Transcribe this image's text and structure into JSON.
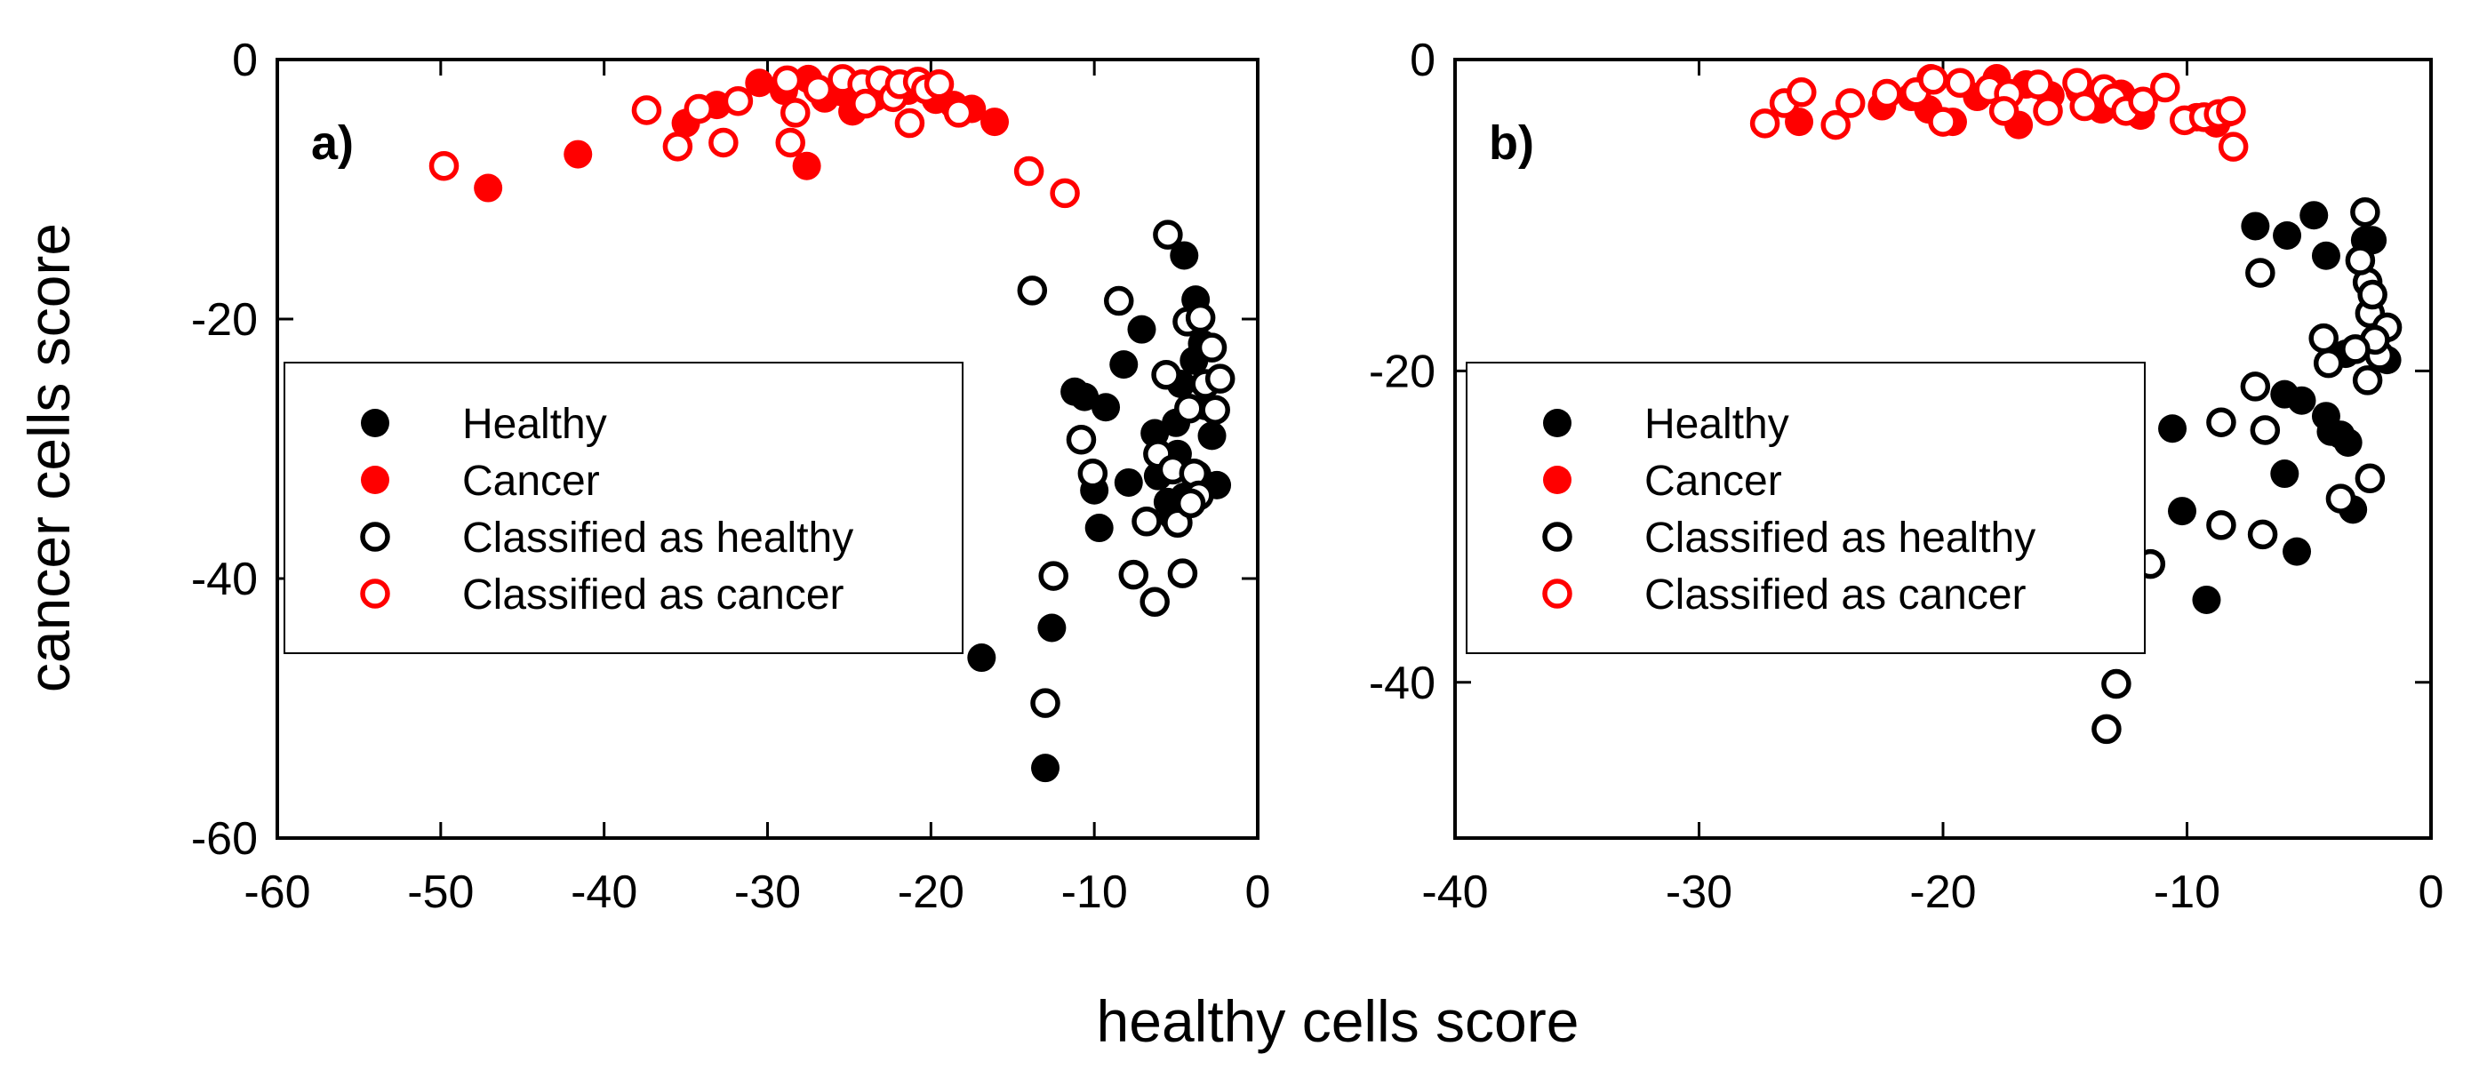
{
  "figure": {
    "xlabel": "healthy cells score",
    "ylabel": "cancer cells score"
  },
  "colors": {
    "healthy": "#000000",
    "cancer": "#ff0000"
  },
  "legend": [
    {
      "label": "Healthy",
      "marker": "filled",
      "color": "#000000"
    },
    {
      "label": "Cancer",
      "marker": "filled",
      "color": "#ff0000"
    },
    {
      "label": "Classified as healthy",
      "marker": "open",
      "color": "#000000"
    },
    {
      "label": "Classified as cancer",
      "marker": "open",
      "color": "#ff0000"
    }
  ],
  "chart_data": [
    {
      "type": "scatter",
      "panel_label": "a)",
      "xlim": [
        -60,
        0
      ],
      "ylim": [
        -60,
        0
      ],
      "xticks": [
        -60,
        -50,
        -40,
        -30,
        -20,
        -10,
        0
      ],
      "yticks": [
        -60,
        -40,
        -20,
        0
      ],
      "legend_position": "center-left",
      "series": [
        {
          "name": "Healthy",
          "marker": "filled",
          "color": "#000000",
          "points": [
            [
              -13,
              -54.6
            ],
            [
              -12.6,
              -43.8
            ],
            [
              -16.9,
              -46.1
            ],
            [
              -9.7,
              -36.1
            ],
            [
              -10,
              -33.2
            ],
            [
              -11.2,
              -25.6
            ],
            [
              -10.6,
              -26
            ],
            [
              -9.3,
              -26.8
            ],
            [
              -8.2,
              -23.5
            ],
            [
              -7.1,
              -20.8
            ],
            [
              -6.3,
              -28.8
            ],
            [
              -6.1,
              -32.1
            ],
            [
              -5.5,
              -34.1
            ],
            [
              -5.2,
              -35.2
            ],
            [
              -7.9,
              -32.6
            ],
            [
              -4.9,
              -30.4
            ],
            [
              -4.5,
              -15.1
            ],
            [
              -3.8,
              -18.5
            ],
            [
              -3.9,
              -23.2
            ],
            [
              -4.7,
              -25
            ],
            [
              -3.2,
              -26.7
            ],
            [
              -2.8,
              -29
            ],
            [
              -3.7,
              -32
            ],
            [
              -2.5,
              -32.8
            ],
            [
              -4.5,
              -33.7
            ],
            [
              -3.4,
              -21.9
            ],
            [
              -5,
              -28
            ]
          ]
        },
        {
          "name": "Cancer",
          "marker": "filled",
          "color": "#ff0000",
          "points": [
            [
              -47.1,
              -9.9
            ],
            [
              -41.6,
              -7.3
            ],
            [
              -35,
              -4.9
            ],
            [
              -33.1,
              -3.5
            ],
            [
              -30.5,
              -1.8
            ],
            [
              -29,
              -2.4
            ],
            [
              -27.5,
              -1.5
            ],
            [
              -27.6,
              -8.2
            ],
            [
              -26.5,
              -3
            ],
            [
              -24.8,
              -4
            ],
            [
              -23.4,
              -2.9
            ],
            [
              -22.2,
              -2.2
            ],
            [
              -21.4,
              -2.4
            ],
            [
              -19.7,
              -3.1
            ],
            [
              -18.6,
              -3.5
            ],
            [
              -17.5,
              -3.8
            ],
            [
              -16.1,
              -4.8
            ],
            [
              -25.5,
              -2.5
            ]
          ]
        },
        {
          "name": "Classified as healthy",
          "marker": "open",
          "color": "#000000",
          "points": [
            [
              -13.8,
              -17.8
            ],
            [
              -13,
              -49.6
            ],
            [
              -12.5,
              -39.8
            ],
            [
              -10.8,
              -29.3
            ],
            [
              -10.1,
              -31.9
            ],
            [
              -8.5,
              -18.6
            ],
            [
              -7.6,
              -39.7
            ],
            [
              -6.8,
              -35.6
            ],
            [
              -6.3,
              -41.8
            ],
            [
              -6.1,
              -30.4
            ],
            [
              -5.6,
              -24.3
            ],
            [
              -5.5,
              -13.5
            ],
            [
              -5.2,
              -31.6
            ],
            [
              -4.9,
              -35.7
            ],
            [
              -4.6,
              -39.6
            ],
            [
              -4.3,
              -20.2
            ],
            [
              -4.2,
              -26.9
            ],
            [
              -3.9,
              -31.9
            ],
            [
              -3.6,
              -33.6
            ],
            [
              -3.2,
              -25
            ],
            [
              -2.8,
              -22.2
            ],
            [
              -2.6,
              -27
            ],
            [
              -2.3,
              -24.6
            ],
            [
              -4.1,
              -34.2
            ],
            [
              -3.5,
              -19.9
            ]
          ]
        },
        {
          "name": "Classified as cancer",
          "marker": "open",
          "color": "#ff0000",
          "points": [
            [
              -49.8,
              -8.2
            ],
            [
              -37.4,
              -3.9
            ],
            [
              -35.5,
              -6.7
            ],
            [
              -34.2,
              -3.8
            ],
            [
              -32.7,
              -6.4
            ],
            [
              -31.8,
              -3.2
            ],
            [
              -28.8,
              -1.6
            ],
            [
              -28.6,
              -6.4
            ],
            [
              -28.3,
              -4.1
            ],
            [
              -26.9,
              -2.3
            ],
            [
              -25.4,
              -1.5
            ],
            [
              -24.2,
              -1.9
            ],
            [
              -23.1,
              -1.6
            ],
            [
              -22.3,
              -2.9
            ],
            [
              -21.9,
              -1.9
            ],
            [
              -21.3,
              -4.9
            ],
            [
              -20.8,
              -1.7
            ],
            [
              -20.3,
              -2.3
            ],
            [
              -19.5,
              -1.9
            ],
            [
              -18.3,
              -4.1
            ],
            [
              -14,
              -8.6
            ],
            [
              -11.8,
              -10.3
            ],
            [
              -24,
              -3.4
            ]
          ]
        }
      ]
    },
    {
      "type": "scatter",
      "panel_label": "b)",
      "xlim": [
        -40,
        0
      ],
      "ylim": [
        -50,
        0
      ],
      "xticks": [
        -40,
        -30,
        -20,
        -10,
        0
      ],
      "yticks": [
        -40,
        -20,
        0
      ],
      "legend_position": "center-left",
      "series": [
        {
          "name": "Healthy",
          "marker": "filled",
          "color": "#000000",
          "points": [
            [
              -9.2,
              -34.7
            ],
            [
              -10.6,
              -23.7
            ],
            [
              -10.2,
              -29
            ],
            [
              -5.5,
              -31.6
            ],
            [
              -6,
              -26.6
            ],
            [
              -6,
              -21.5
            ],
            [
              -5.3,
              -21.9
            ],
            [
              -4.3,
              -22.9
            ],
            [
              -4.1,
              -23.9
            ],
            [
              -3.4,
              -24.6
            ],
            [
              -3.2,
              -28.9
            ],
            [
              -3.5,
              -18.9
            ],
            [
              -4.8,
              -10
            ],
            [
              -4.3,
              -12.6
            ],
            [
              -5.9,
              -11.3
            ],
            [
              -7.2,
              -10.7
            ],
            [
              -2.7,
              -11.6
            ],
            [
              -2.4,
              -11.6
            ],
            [
              -1.8,
              -19.3
            ],
            [
              -3.7,
              -24.1
            ]
          ]
        },
        {
          "name": "Cancer",
          "marker": "filled",
          "color": "#ff0000",
          "points": [
            [
              -25.9,
              -4
            ],
            [
              -21.3,
              -2.4
            ],
            [
              -20.5,
              -1.2
            ],
            [
              -20.6,
              -3.2
            ],
            [
              -19.6,
              -4
            ],
            [
              -18.6,
              -2.4
            ],
            [
              -17.8,
              -1.2
            ],
            [
              -16.9,
              -4.2
            ],
            [
              -16.6,
              -1.6
            ],
            [
              -15.6,
              -2.3
            ],
            [
              -14.4,
              -2
            ],
            [
              -13.5,
              -3.2
            ],
            [
              -12.7,
              -2.2
            ],
            [
              -11.9,
              -3.6
            ],
            [
              -9.6,
              -3.7
            ],
            [
              -8.8,
              -4.1
            ],
            [
              -8.3,
              -3.4
            ],
            [
              -22.5,
              -3
            ]
          ]
        },
        {
          "name": "Classified as healthy",
          "marker": "open",
          "color": "#000000",
          "points": [
            [
              -13.3,
              -43
            ],
            [
              -12.9,
              -40.1
            ],
            [
              -11.5,
              -32.4
            ],
            [
              -8.6,
              -23.3
            ],
            [
              -8.6,
              -29.9
            ],
            [
              -7.2,
              -21
            ],
            [
              -7,
              -13.7
            ],
            [
              -6.8,
              -23.8
            ],
            [
              -6.9,
              -30.5
            ],
            [
              -4.4,
              -17.9
            ],
            [
              -4.2,
              -19.5
            ],
            [
              -3.7,
              -28.2
            ],
            [
              -2.7,
              -9.8
            ],
            [
              -2.6,
              -14.3
            ],
            [
              -2.5,
              -16.3
            ],
            [
              -2.4,
              -15.1
            ],
            [
              -2.1,
              -19
            ],
            [
              -1.8,
              -17.2
            ],
            [
              -2.6,
              -20.6
            ],
            [
              -2.5,
              -26.9
            ],
            [
              -2.3,
              -18
            ],
            [
              -3.1,
              -18.6
            ],
            [
              -2.9,
              -12.9
            ]
          ]
        },
        {
          "name": "Classified as cancer",
          "marker": "open",
          "color": "#ff0000",
          "points": [
            [
              -27.3,
              -4.1
            ],
            [
              -26.5,
              -2.8
            ],
            [
              -25.8,
              -2.1
            ],
            [
              -24.4,
              -4.2
            ],
            [
              -23.8,
              -2.8
            ],
            [
              -22.3,
              -2.2
            ],
            [
              -21.1,
              -2.1
            ],
            [
              -20.4,
              -1.3
            ],
            [
              -20,
              -4
            ],
            [
              -19.3,
              -1.5
            ],
            [
              -18.1,
              -1.9
            ],
            [
              -17.3,
              -2.2
            ],
            [
              -16.1,
              -1.6
            ],
            [
              -15.7,
              -3.3
            ],
            [
              -14.5,
              -1.5
            ],
            [
              -14.2,
              -3
            ],
            [
              -13.4,
              -1.9
            ],
            [
              -13,
              -2.5
            ],
            [
              -12.5,
              -3.3
            ],
            [
              -11.8,
              -2.7
            ],
            [
              -10.9,
              -1.8
            ],
            [
              -10.1,
              -3.9
            ],
            [
              -9.3,
              -3.7
            ],
            [
              -8.7,
              -3.5
            ],
            [
              -8.2,
              -3.3
            ],
            [
              -8.1,
              -5.6
            ],
            [
              -17.5,
              -3.3
            ]
          ]
        }
      ]
    }
  ]
}
